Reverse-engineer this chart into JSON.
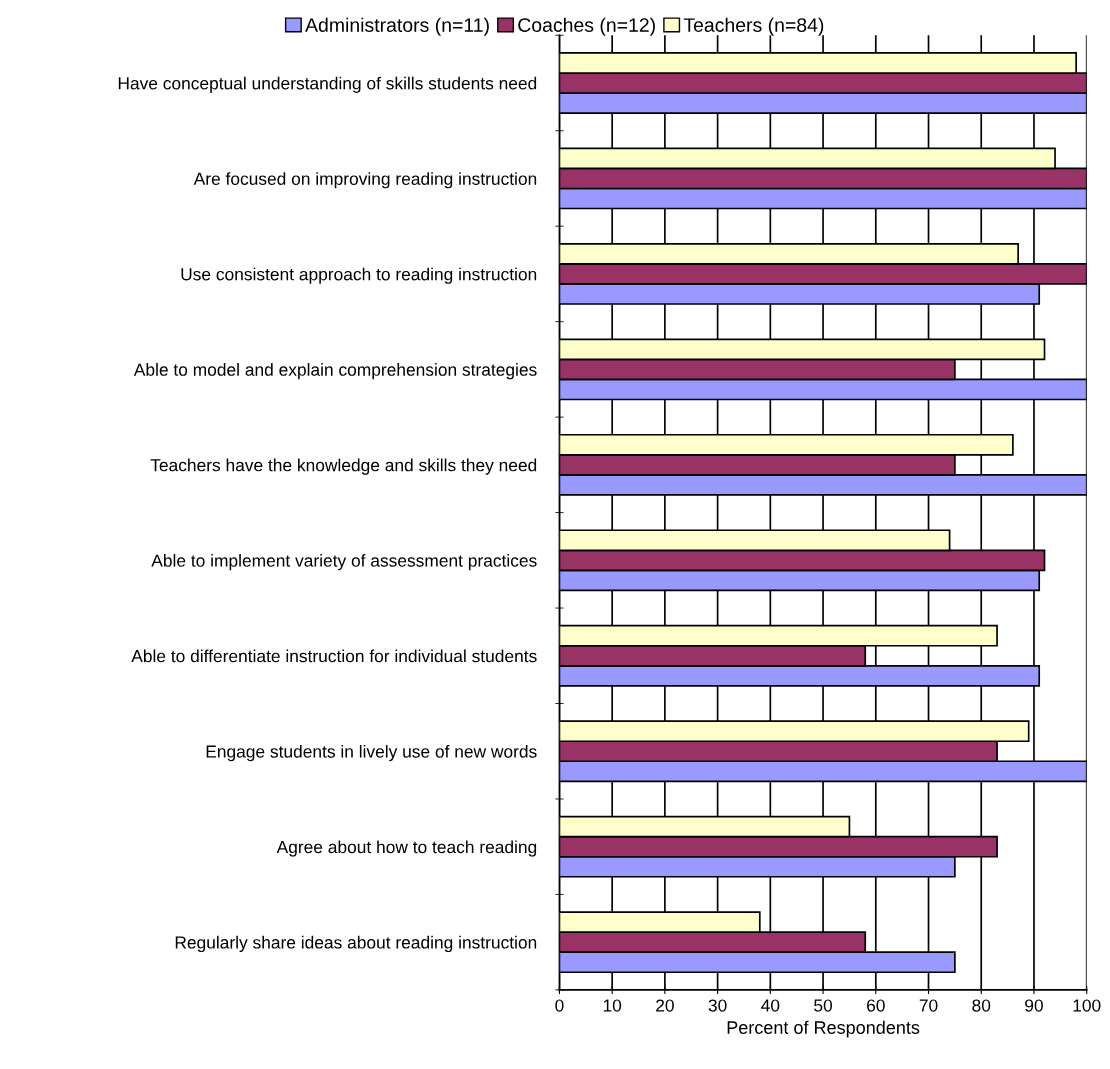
{
  "chart_data": {
    "type": "bar",
    "orientation": "horizontal",
    "xlabel": "Percent of Respondents",
    "categories": [
      "Have conceptual understanding of skills students need",
      "Are focused on improving reading instruction",
      "Use consistent approach to reading instruction",
      "Able to model and explain comprehension strategies",
      "Teachers have the knowledge and skills they need",
      "Able to implement variety of assessment practices",
      "Able to differentiate instruction for individual students",
      "Engage students in lively use of new words",
      "Agree about how to teach reading",
      "Regularly share ideas about reading instruction"
    ],
    "series": [
      {
        "name": "Administrators (n=11)",
        "color": "#9999ff",
        "values": [
          100,
          100,
          91,
          100,
          100,
          91,
          91,
          100,
          75,
          75
        ]
      },
      {
        "name": "Coaches (n=12)",
        "color": "#993366",
        "values": [
          100,
          100,
          100,
          75,
          75,
          92,
          58,
          83,
          83,
          58
        ]
      },
      {
        "name": "Teachers (n=84)",
        "color": "#ffffcc",
        "values": [
          98,
          94,
          87,
          92,
          86,
          74,
          83,
          89,
          55,
          38
        ]
      }
    ],
    "xlim": [
      0,
      100
    ],
    "xticks": [
      0,
      10,
      20,
      30,
      40,
      50,
      60,
      70,
      80,
      90,
      100
    ],
    "grid": "x",
    "legend": "top"
  }
}
